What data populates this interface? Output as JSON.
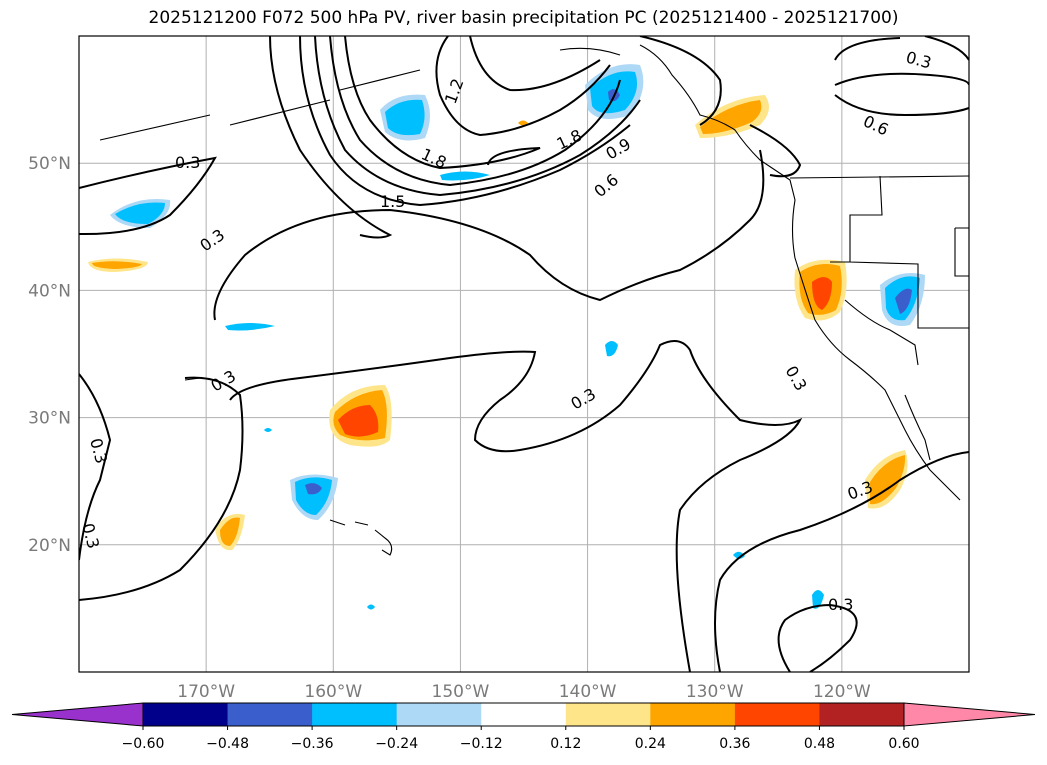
{
  "title": "2025121200 F072 500 hPa PV, river basin precipitation PC (2025121400 - 2025121700)",
  "map": {
    "lon_range": [
      -180,
      -110
    ],
    "lat_range": [
      10,
      60
    ],
    "lat_ticks": [
      {
        "value": 50,
        "label": "50°N"
      },
      {
        "value": 40,
        "label": "40°N"
      },
      {
        "value": 30,
        "label": "30°N"
      },
      {
        "value": 20,
        "label": "20°N"
      }
    ],
    "lon_ticks": [
      {
        "value": -170,
        "label": "170°W"
      },
      {
        "value": -160,
        "label": "160°W"
      },
      {
        "value": -150,
        "label": "150°W"
      },
      {
        "value": -140,
        "label": "140°W"
      },
      {
        "value": -130,
        "label": "130°W"
      },
      {
        "value": -120,
        "label": "120°W"
      }
    ],
    "grid": true,
    "contour_labels": [
      "0.3",
      "0.3",
      "0.3",
      "0.3",
      "0.3",
      "0.3",
      "0.3",
      "0.3",
      "0.3",
      "0.6",
      "0.6",
      "0.9",
      "1.2",
      "1.5",
      "1.8",
      "1.8"
    ]
  },
  "colorbar": {
    "labels": [
      "−0.60",
      "−0.48",
      "−0.36",
      "−0.24",
      "−0.12",
      "0.12",
      "0.24",
      "0.36",
      "0.48",
      "0.60"
    ],
    "colors": [
      "#9932cc",
      "#00008b",
      "#3a5fcd",
      "#00bfff",
      "#add8f6",
      "#ffffff",
      "#ffe58a",
      "#ffa500",
      "#ff4500",
      "#b22222",
      "#ff87a8"
    ]
  }
}
